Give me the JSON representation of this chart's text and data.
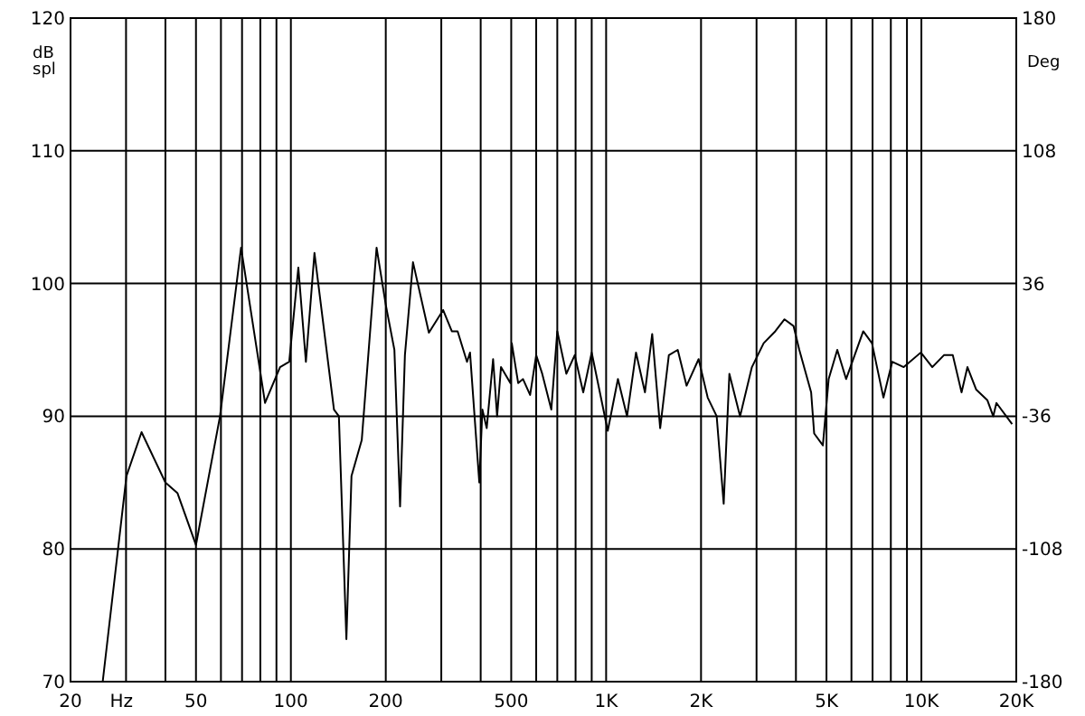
{
  "chart_data": {
    "type": "line",
    "xlabel": "Hz",
    "ylabel": "dB spl",
    "y2label": "Deg",
    "log": "x",
    "grid": true,
    "marker": "none",
    "line_style": "solid",
    "xlim": [
      20,
      20000
    ],
    "ylim": [
      70,
      120
    ],
    "y2lim": [
      -180,
      180
    ],
    "xticks": [
      20,
      {
        "value": 30,
        "label": null
      },
      {
        "value": 40,
        "label": null
      },
      50,
      {
        "value": 60,
        "label": null
      },
      {
        "value": 70,
        "label": null
      },
      {
        "value": 80,
        "label": null
      },
      {
        "value": 90,
        "label": null
      },
      100,
      200,
      {
        "value": 300,
        "label": null
      },
      {
        "value": 400,
        "label": null
      },
      500,
      {
        "value": 600,
        "label": null
      },
      {
        "value": 700,
        "label": null
      },
      {
        "value": 800,
        "label": null
      },
      {
        "value": 900,
        "label": null
      },
      {
        "value": 1000,
        "label": "1K"
      },
      {
        "value": 2000,
        "label": "2K"
      },
      {
        "value": 3000,
        "label": null
      },
      {
        "value": 4000,
        "label": null
      },
      {
        "value": 5000,
        "label": "5K"
      },
      {
        "value": 6000,
        "label": null
      },
      {
        "value": 7000,
        "label": null
      },
      {
        "value": 8000,
        "label": null
      },
      {
        "value": 9000,
        "label": null
      },
      {
        "value": 10000,
        "label": "10K"
      },
      {
        "value": 20000,
        "label": "20K"
      }
    ],
    "yticks": [
      70,
      80,
      90,
      100,
      110,
      120
    ],
    "y2ticks": [
      -180,
      -108,
      -36,
      36,
      108,
      180
    ],
    "series": [
      {
        "color": "#000000",
        "x": [
          25.3,
          30.1,
          33.6,
          40,
          43.7,
          50,
          59.6,
          69.5,
          82.8,
          92.4,
          98.8,
          105.6,
          111.6,
          118.8,
          137,
          142,
          150,
          155.7,
          167.8,
          187,
          200,
          213,
          222,
          230,
          244,
          274,
          304,
          324,
          338,
          362,
          370,
          396,
          405,
          418,
          438,
          451,
          464,
          497,
          502,
          526,
          545,
          574,
          600,
          627,
          670,
          700,
          748,
          795,
          846,
          900,
          1012,
          1090,
          1165,
          1244,
          1328,
          1400,
          1484,
          1581,
          1687,
          1800,
          1965,
          2100,
          2242,
          2360,
          2460,
          2660,
          2900,
          3160,
          3440,
          3680,
          3930,
          4100,
          4470,
          4570,
          4870,
          5080,
          5410,
          5770,
          6540,
          6970,
          7580,
          8080,
          8790,
          9960,
          10830,
          11790,
          12580,
          13410,
          14000,
          14930,
          16200,
          16900,
          17300,
          19400
        ],
        "values": [
          70,
          85.5,
          88.8,
          85,
          84.2,
          80.3,
          90,
          102.7,
          91,
          93.7,
          94.1,
          101.2,
          94.1,
          102.3,
          90.5,
          90,
          73.2,
          85.5,
          88.2,
          102.7,
          98.4,
          95,
          83.2,
          94.6,
          101.6,
          96.3,
          98,
          96.4,
          96.4,
          94.1,
          94.8,
          85,
          90.5,
          89.1,
          94.3,
          90,
          93.7,
          92.5,
          95.5,
          92.5,
          92.8,
          91.6,
          94.6,
          93.2,
          90.5,
          96.4,
          93.2,
          94.6,
          91.8,
          94.8,
          88.9,
          92.8,
          90,
          94.8,
          91.8,
          96.2,
          89.1,
          94.6,
          95,
          92.3,
          94.3,
          91.4,
          90,
          83.4,
          93.2,
          90,
          93.7,
          95.5,
          96.4,
          97.3,
          96.8,
          95,
          91.8,
          88.7,
          87.8,
          92.8,
          95,
          92.8,
          96.4,
          95.5,
          91.4,
          94.1,
          93.7,
          94.8,
          93.7,
          94.6,
          94.6,
          91.8,
          93.7,
          92,
          91.2,
          90,
          91,
          89.4
        ]
      }
    ]
  }
}
